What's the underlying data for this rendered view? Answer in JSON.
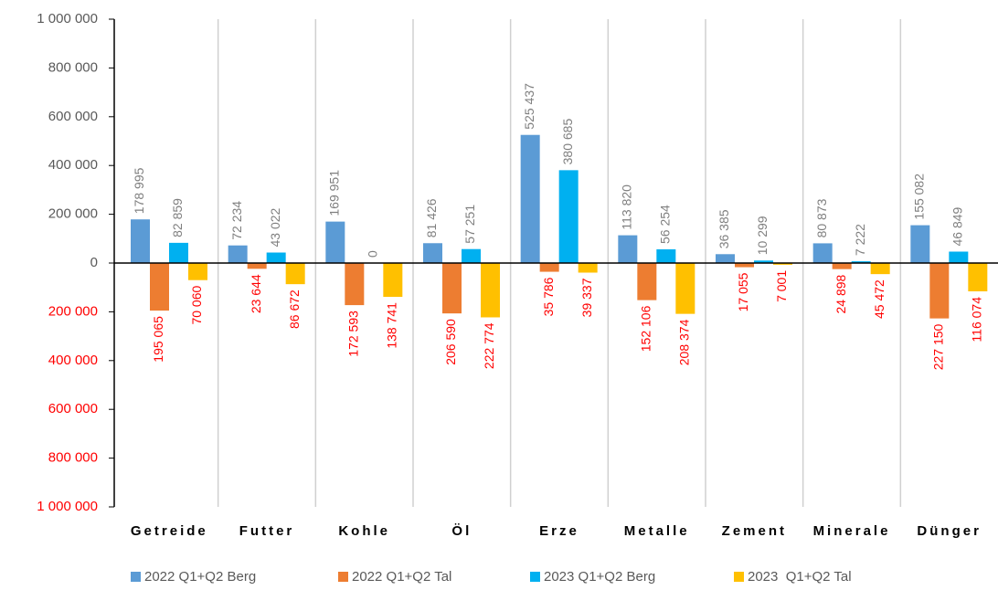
{
  "chart_data": {
    "type": "bar",
    "categories": [
      "Getreide",
      "Futter",
      "Kohle",
      "Öl",
      "Erze",
      "Metalle",
      "Zement",
      "Minerale",
      "Dünger"
    ],
    "series": [
      {
        "name": "2022 Q1+Q2 Berg",
        "color": "#5b9bd5",
        "values": [
          178995,
          72234,
          169951,
          81426,
          525437,
          113820,
          36385,
          80873,
          155082
        ],
        "value_labels": [
          "178 995",
          "72 234",
          "169 951",
          "81 426",
          "525 437",
          "113 820",
          "36 385",
          "80 873",
          "155 082"
        ]
      },
      {
        "name": "2022 Q1+Q2 Tal",
        "color": "#ed7d31",
        "values": [
          -195065,
          -23644,
          -172593,
          -206590,
          -35786,
          -152106,
          -17055,
          -24898,
          -227150
        ],
        "value_labels": [
          "195 065",
          "23 644",
          "172 593",
          "206 590",
          "35 786",
          "152 106",
          "17 055",
          "24 898",
          "227 150"
        ]
      },
      {
        "name": "2023 Q1+Q2 Berg",
        "color": "#00b0f0",
        "values": [
          82859,
          43022,
          0,
          57251,
          380685,
          56254,
          10299,
          7222,
          46849
        ],
        "value_labels": [
          "82 859",
          "43 022",
          "0",
          "57 251",
          "380 685",
          "56 254",
          "10 299",
          "7 222",
          "46 849"
        ]
      },
      {
        "name": "2023  Q1+Q2 Tal",
        "color": "#ffc000",
        "values": [
          -70060,
          -86672,
          -138741,
          -222774,
          -39337,
          -208374,
          -7001,
          -45472,
          -116074
        ],
        "value_labels": [
          "70 060",
          "86 672",
          "138 741",
          "222 774",
          "39 337",
          "208 374",
          "7 001",
          "45 472",
          "116 074"
        ]
      }
    ],
    "ylim": [
      -1000000,
      1000000
    ],
    "yticks": [
      {
        "value": 1000000,
        "label": "1 000 000"
      },
      {
        "value": 800000,
        "label": "800 000"
      },
      {
        "value": 600000,
        "label": "600 000"
      },
      {
        "value": 400000,
        "label": "400 000"
      },
      {
        "value": 200000,
        "label": "200 000"
      },
      0,
      {
        "value": -200000,
        "label": "200 000"
      },
      {
        "value": -400000,
        "label": "400 000"
      },
      {
        "value": -600000,
        "label": "600 000"
      },
      {
        "value": -800000,
        "label": "800 000"
      },
      {
        "value": -1000000,
        "label": "1 000 000"
      }
    ],
    "label_colors": {
      "positive": "#7f7f7f",
      "negative": "#ff0000"
    },
    "legend": "bottom"
  }
}
